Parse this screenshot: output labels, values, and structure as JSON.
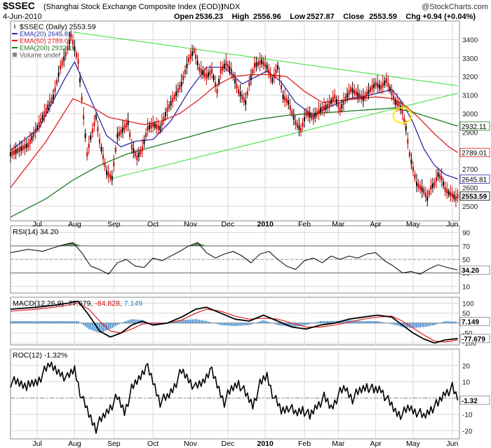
{
  "header": {
    "symbol": "$SSEC",
    "name": "(Shanghai Stock Exchange Composite Index (EOD))",
    "exchange": "INDX",
    "brand": "@StockCharts.com",
    "date": "4-Jun-2010",
    "ohlc": "Open 2536.23  High 2556.96  Low 2527.87  Close 2553.59  Chg +0.94 (+0.04%)",
    "ohlc_parts": [
      {
        "label": "Open",
        "value": "2536.23"
      },
      {
        "label": "High",
        "value": "2556.96"
      },
      {
        "label": "Low",
        "value": "2527.87"
      },
      {
        "label": "Close",
        "value": "2553.59"
      },
      {
        "label": "Chg",
        "value": "+0.94 (+0.04%)"
      }
    ]
  },
  "colors": {
    "price": "#cc0000",
    "ema20": "#2a2aa8",
    "ema50": "#e02020",
    "ema200": "#1f7a1f",
    "trend": "#33dd33",
    "rsi_fill": "#4a7a4a",
    "macd_line": "#000000",
    "macd_signal": "#e02020",
    "macd_hist": "#4a8fd0",
    "roc": "#000000",
    "highlight": "#ffee00"
  },
  "chart_data": [
    {
      "type": "line",
      "title": "$SSEC (Daily) 2553.59",
      "legend": [
        {
          "name": "$SSEC (Daily)",
          "value": "2553.59"
        },
        {
          "name": "EMA(20)",
          "value": "2645.81"
        },
        {
          "name": "EMA(50)",
          "value": "2789.01"
        },
        {
          "name": "EMA(200)",
          "value": "2932.11"
        },
        {
          "name": "Volume undef",
          "value": ""
        }
      ],
      "ylim": [
        2420,
        3500
      ],
      "y_ticks": [
        2500,
        2600,
        2700,
        2800,
        2900,
        3000,
        3100,
        3200,
        3300,
        3400
      ],
      "x_labels": [
        {
          "label": "Jul",
          "x": 5
        },
        {
          "label": "Aug",
          "x": 26
        },
        {
          "label": "Sep",
          "x": 48
        },
        {
          "label": "Oct",
          "x": 70
        },
        {
          "label": "Nov",
          "x": 91
        },
        {
          "label": "Dec",
          "x": 112
        },
        {
          "label": "2010",
          "x": 133
        },
        {
          "label": "Feb",
          "x": 155
        },
        {
          "label": "Mar",
          "x": 174
        },
        {
          "label": "Apr",
          "x": 195
        },
        {
          "label": "May",
          "x": 216
        },
        {
          "label": "Jun",
          "x": 238
        }
      ],
      "x_range": [
        -10,
        242
      ],
      "price": {
        "name": "$SSEC (Daily)",
        "x": [
          -10,
          0,
          8,
          14,
          18,
          21,
          24,
          28,
          33,
          35,
          38,
          40,
          44,
          47,
          50,
          52,
          56,
          58,
          61,
          64,
          67,
          70,
          74,
          78,
          82,
          86,
          90,
          93,
          96,
          100,
          103,
          106,
          108,
          111,
          114,
          118,
          122,
          124,
          127,
          131,
          134,
          137,
          140,
          143,
          146,
          150,
          153,
          156,
          160,
          164,
          168,
          172,
          175,
          178,
          181,
          184,
          188,
          192,
          195,
          198,
          201,
          204,
          206,
          208,
          210,
          212,
          214,
          216,
          218,
          220,
          222,
          224,
          226,
          228,
          230,
          232,
          234,
          236,
          238,
          240,
          241
        ],
        "y": [
          2780,
          2830,
          2980,
          3090,
          3250,
          3320,
          3420,
          3280,
          2780,
          2870,
          2980,
          2850,
          2680,
          2650,
          2880,
          2900,
          2950,
          2820,
          2760,
          2810,
          2920,
          2940,
          2920,
          3020,
          3090,
          3160,
          3290,
          3340,
          3240,
          3200,
          3230,
          3120,
          3230,
          3270,
          3230,
          3120,
          3060,
          3160,
          3260,
          3280,
          3250,
          3180,
          3250,
          3090,
          3060,
          2950,
          2910,
          3000,
          2980,
          3020,
          3040,
          3090,
          3020,
          3080,
          3130,
          3110,
          3080,
          3130,
          3160,
          3140,
          3180,
          3110,
          3060,
          3050,
          3010,
          2920,
          2780,
          2700,
          2620,
          2600,
          2580,
          2540,
          2600,
          2620,
          2670,
          2650,
          2590,
          2570,
          2560,
          2540,
          2553.59
        ]
      },
      "series": [
        {
          "name": "EMA(20)",
          "x": [
            -10,
            6,
            20,
            26,
            34,
            44,
            52,
            60,
            70,
            80,
            90,
            100,
            110,
            120,
            128,
            134,
            142,
            150,
            160,
            170,
            180,
            188,
            196,
            204,
            210,
            216,
            222,
            228,
            234,
            241
          ],
          "y": [
            2800,
            2920,
            3180,
            3280,
            3100,
            2880,
            2820,
            2850,
            2860,
            2960,
            3120,
            3250,
            3250,
            3160,
            3200,
            3230,
            3170,
            3060,
            2990,
            3040,
            3080,
            3090,
            3110,
            3130,
            3060,
            2950,
            2810,
            2720,
            2670,
            2645.81
          ]
        },
        {
          "name": "EMA(50)",
          "x": [
            -10,
            10,
            25,
            35,
            45,
            55,
            65,
            75,
            85,
            95,
            105,
            115,
            125,
            135,
            145,
            155,
            165,
            175,
            185,
            195,
            205,
            212,
            220,
            228,
            236,
            241
          ],
          "y": [
            2600,
            2850,
            3080,
            3040,
            2980,
            2960,
            2940,
            2960,
            3000,
            3070,
            3150,
            3200,
            3210,
            3210,
            3200,
            3120,
            3060,
            3070,
            3080,
            3090,
            3080,
            3040,
            2970,
            2890,
            2820,
            2789.01
          ]
        },
        {
          "name": "EMA(200)",
          "x": [
            -10,
            10,
            25,
            40,
            55,
            70,
            85,
            100,
            115,
            130,
            145,
            160,
            175,
            190,
            205,
            215,
            225,
            235,
            241
          ],
          "y": [
            2440,
            2540,
            2640,
            2720,
            2780,
            2820,
            2860,
            2900,
            2940,
            2970,
            2990,
            3000,
            3010,
            3020,
            3030,
            3010,
            2980,
            2950,
            2932.11
          ]
        },
        {
          "name": "Trendline (upper)",
          "x": [
            25,
            241
          ],
          "y": [
            3440,
            3150
          ]
        },
        {
          "name": "Trendline (lower)",
          "x": [
            47,
            241
          ],
          "y": [
            2650,
            3110
          ]
        }
      ],
      "price_labels": [
        {
          "value": "2932.11",
          "y": 2932.11
        },
        {
          "value": "2789.01",
          "y": 2789.01
        },
        {
          "value": "2645.81",
          "y": 2645.81
        },
        {
          "value": "2553.59",
          "y": 2553.59
        }
      ],
      "annotation": {
        "type": "circle",
        "x": 210,
        "y": 2990
      }
    },
    {
      "type": "line",
      "title": "RSI(14) 34.20",
      "name": "RSI(14)",
      "value": "34.20",
      "ylim": [
        0,
        100
      ],
      "y_ticks": [
        10,
        30,
        50,
        70,
        90
      ],
      "x": [
        -10,
        0,
        8,
        15,
        20,
        25,
        30,
        35,
        40,
        45,
        50,
        55,
        60,
        65,
        70,
        75,
        80,
        85,
        90,
        95,
        100,
        105,
        110,
        115,
        120,
        125,
        130,
        135,
        140,
        145,
        150,
        155,
        160,
        165,
        170,
        175,
        180,
        185,
        190,
        195,
        200,
        205,
        210,
        215,
        220,
        225,
        230,
        235,
        241
      ],
      "y": [
        60,
        65,
        62,
        68,
        72,
        75,
        60,
        40,
        35,
        28,
        45,
        50,
        40,
        38,
        52,
        48,
        55,
        62,
        70,
        75,
        60,
        52,
        58,
        62,
        55,
        45,
        58,
        62,
        50,
        40,
        35,
        48,
        52,
        45,
        55,
        50,
        55,
        52,
        58,
        60,
        48,
        40,
        30,
        32,
        28,
        36,
        42,
        38,
        34.2
      ]
    },
    {
      "type": "line",
      "title": "MACD(12,26,9) -77.679, -84.828, 7.149",
      "name": "MACD(12,26,9)",
      "values": [
        "-77.679",
        "-84.828",
        "7.149"
      ],
      "ylim": [
        -110,
        130
      ],
      "y_ticks": [
        -100,
        -50,
        0,
        50,
        100
      ],
      "series": [
        {
          "name": "MACD",
          "x": [
            -10,
            5,
            15,
            22,
            28,
            34,
            40,
            46,
            52,
            58,
            64,
            70,
            78,
            86,
            94,
            100,
            108,
            116,
            124,
            132,
            140,
            148,
            156,
            164,
            172,
            180,
            188,
            196,
            204,
            210,
            216,
            222,
            228,
            234,
            241
          ],
          "y": [
            70,
            80,
            90,
            100,
            110,
            40,
            -40,
            -70,
            -50,
            -10,
            10,
            -10,
            0,
            30,
            70,
            80,
            50,
            20,
            10,
            40,
            10,
            -20,
            -30,
            -10,
            0,
            20,
            30,
            40,
            30,
            -10,
            -50,
            -80,
            -100,
            -85,
            -77.679
          ]
        },
        {
          "name": "Signal",
          "x": [
            -10,
            5,
            15,
            22,
            28,
            34,
            40,
            46,
            52,
            58,
            64,
            70,
            78,
            86,
            94,
            100,
            108,
            116,
            124,
            132,
            140,
            148,
            156,
            164,
            172,
            180,
            188,
            196,
            204,
            210,
            216,
            222,
            228,
            234,
            241
          ],
          "y": [
            60,
            70,
            80,
            90,
            100,
            70,
            10,
            -40,
            -50,
            -30,
            -5,
            0,
            0,
            15,
            50,
            70,
            60,
            35,
            20,
            25,
            20,
            0,
            -20,
            -20,
            -10,
            5,
            20,
            30,
            35,
            10,
            -25,
            -60,
            -90,
            -95,
            -84.828
          ]
        },
        {
          "name": "Histogram",
          "x": [
            -10,
            5,
            15,
            22,
            28,
            34,
            40,
            46,
            52,
            58,
            64,
            70,
            78,
            86,
            94,
            100,
            108,
            116,
            124,
            132,
            140,
            148,
            156,
            164,
            172,
            180,
            188,
            196,
            204,
            210,
            216,
            222,
            228,
            234,
            241
          ],
          "y": [
            10,
            10,
            10,
            10,
            10,
            -30,
            -50,
            -30,
            0,
            20,
            15,
            -10,
            0,
            15,
            20,
            10,
            -10,
            -15,
            -10,
            15,
            -10,
            -20,
            -10,
            10,
            10,
            15,
            10,
            10,
            -5,
            -20,
            -25,
            -20,
            -10,
            10,
            7.149
          ]
        }
      ]
    },
    {
      "type": "line",
      "title": "ROC(12) -1.32%",
      "name": "ROC(12)",
      "value": "-1.32%",
      "ylim": [
        -25,
        30
      ],
      "y_ticks": [
        -20,
        -10,
        0,
        10,
        20
      ],
      "value_label": "-1.32",
      "x": [
        -10,
        0,
        6,
        12,
        18,
        22,
        26,
        30,
        34,
        38,
        42,
        46,
        50,
        54,
        58,
        62,
        66,
        70,
        74,
        78,
        82,
        86,
        90,
        94,
        98,
        102,
        106,
        110,
        114,
        118,
        122,
        126,
        130,
        134,
        138,
        142,
        146,
        150,
        154,
        158,
        162,
        166,
        170,
        174,
        178,
        182,
        186,
        190,
        194,
        198,
        202,
        206,
        210,
        214,
        218,
        222,
        226,
        230,
        234,
        238,
        241
      ],
      "y": [
        10,
        8,
        12,
        20,
        16,
        12,
        18,
        0,
        -10,
        -18,
        -12,
        -5,
        0,
        -8,
        5,
        12,
        20,
        10,
        -2,
        0,
        8,
        16,
        12,
        6,
        10,
        18,
        8,
        -2,
        5,
        10,
        2,
        -4,
        8,
        14,
        0,
        -8,
        -5,
        -10,
        -6,
        -12,
        -4,
        0,
        -6,
        2,
        6,
        0,
        4,
        8,
        4,
        6,
        -2,
        -8,
        -10,
        -6,
        -8,
        -12,
        -6,
        -4,
        4,
        6,
        -1.32
      ]
    }
  ]
}
